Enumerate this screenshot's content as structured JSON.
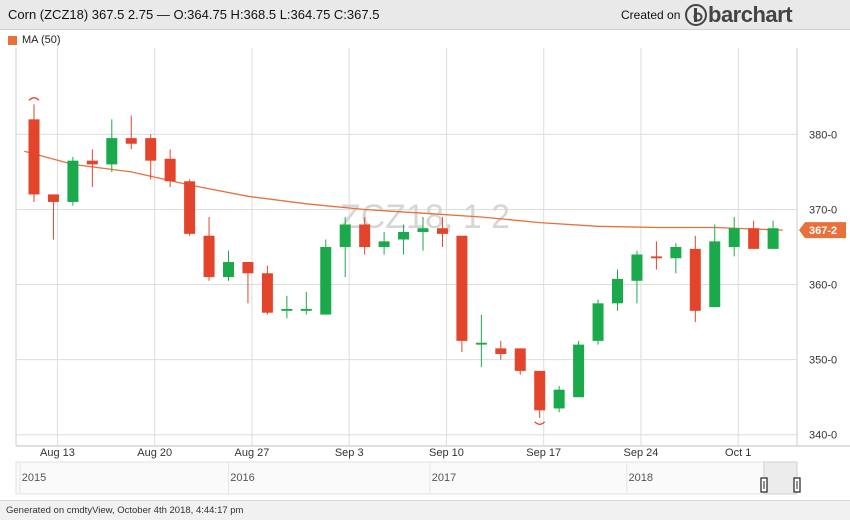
{
  "header": {
    "title": "Corn (ZCZ18) 367.5 2.75 — O:364.75 H:368.5 L:364.75 C:367.5",
    "created_on": "Created on",
    "brand": "barchart"
  },
  "footer": {
    "generated": "Generated on cmdtyView, October 4th 2018, 4:44:17 pm"
  },
  "watermark": "ZCZ18, 1 2",
  "colors": {
    "up": "#1aaa4b",
    "down": "#e2442c",
    "ma": "#e8703a",
    "grid": "#dddddd",
    "price_tag": "#e8703a"
  },
  "chart_data": {
    "type": "candlestick",
    "title": "Corn (ZCZ18)",
    "legend": [
      {
        "name": "MA (50)",
        "color": "#e8703a"
      }
    ],
    "y_axis": {
      "min": 338.5,
      "max": 391.5,
      "ticks": [
        340,
        350,
        360,
        370,
        380
      ],
      "tick_labels": [
        "340-0",
        "350-0",
        "360-0",
        "370-0",
        "380-0"
      ]
    },
    "x_axis": {
      "tick_labels": [
        {
          "label": "Aug 13",
          "index": 1
        },
        {
          "label": "Aug 20",
          "index": 6
        },
        {
          "label": "Aug 27",
          "index": 11
        },
        {
          "label": "Sep 3",
          "index": 16
        },
        {
          "label": "Sep 10",
          "index": 21
        },
        {
          "label": "Sep 17",
          "index": 26
        },
        {
          "label": "Sep 24",
          "index": 31
        },
        {
          "label": "Oct 1",
          "index": 36
        }
      ]
    },
    "navigator_years": [
      {
        "label": "2015",
        "frac": 0.023
      },
      {
        "label": "2016",
        "frac": 0.29
      },
      {
        "label": "2017",
        "frac": 0.548
      },
      {
        "label": "2018",
        "frac": 0.8
      }
    ],
    "last_price_label": "367-2",
    "last_price": 367.25,
    "grid": true,
    "candles": [
      {
        "o": 382,
        "h": 384,
        "l": 371,
        "c": 372
      },
      {
        "o": 372,
        "h": 372,
        "l": 366,
        "c": 371
      },
      {
        "o": 371,
        "h": 377,
        "l": 370.5,
        "c": 376.5
      },
      {
        "o": 376.5,
        "h": 378,
        "l": 373,
        "c": 376
      },
      {
        "o": 376,
        "h": 382,
        "l": 375,
        "c": 379.5
      },
      {
        "o": 379.5,
        "h": 382.5,
        "l": 378,
        "c": 378.75
      },
      {
        "o": 379.5,
        "h": 380,
        "l": 374,
        "c": 376.5
      },
      {
        "o": 376.75,
        "h": 378,
        "l": 373,
        "c": 373.75
      },
      {
        "o": 373.75,
        "h": 374,
        "l": 366.5,
        "c": 366.75
      },
      {
        "o": 366.5,
        "h": 369,
        "l": 360.5,
        "c": 361
      },
      {
        "o": 361,
        "h": 364.5,
        "l": 360.5,
        "c": 363
      },
      {
        "o": 363,
        "h": 363,
        "l": 357.5,
        "c": 361.5
      },
      {
        "o": 361.5,
        "h": 362.5,
        "l": 356,
        "c": 356.25
      },
      {
        "o": 356.5,
        "h": 358.5,
        "l": 355.5,
        "c": 356.75
      },
      {
        "o": 356.5,
        "h": 359,
        "l": 356,
        "c": 356.75
      },
      {
        "o": 356,
        "h": 366,
        "l": 356,
        "c": 365
      },
      {
        "o": 365,
        "h": 369,
        "l": 361,
        "c": 368
      },
      {
        "o": 368,
        "h": 369,
        "l": 364,
        "c": 365
      },
      {
        "o": 365,
        "h": 367,
        "l": 364,
        "c": 365.75
      },
      {
        "o": 366,
        "h": 368,
        "l": 364,
        "c": 367
      },
      {
        "o": 367,
        "h": 369,
        "l": 364.5,
        "c": 367.5
      },
      {
        "o": 367.5,
        "h": 369,
        "l": 365,
        "c": 366.75
      },
      {
        "o": 366.5,
        "h": 366.5,
        "l": 351,
        "c": 352.5
      },
      {
        "o": 352,
        "h": 356,
        "l": 349,
        "c": 352.25
      },
      {
        "o": 351.5,
        "h": 352.5,
        "l": 350,
        "c": 350.75
      },
      {
        "o": 351.5,
        "h": 351.5,
        "l": 348,
        "c": 348.5
      },
      {
        "o": 348.5,
        "h": 348.5,
        "l": 342.25,
        "c": 343.25
      },
      {
        "o": 343.5,
        "h": 346.5,
        "l": 343,
        "c": 346
      },
      {
        "o": 345,
        "h": 352.5,
        "l": 345,
        "c": 352
      },
      {
        "o": 352.5,
        "h": 358,
        "l": 352,
        "c": 357.5
      },
      {
        "o": 357.5,
        "h": 362,
        "l": 356.5,
        "c": 360.75
      },
      {
        "o": 360.5,
        "h": 364.5,
        "l": 357.5,
        "c": 364
      },
      {
        "o": 363.75,
        "h": 365.75,
        "l": 362,
        "c": 363.5
      },
      {
        "o": 363.5,
        "h": 365.5,
        "l": 361.5,
        "c": 365
      },
      {
        "o": 364.75,
        "h": 366.5,
        "l": 355,
        "c": 356.5
      },
      {
        "o": 357,
        "h": 368,
        "l": 357,
        "c": 365.75
      },
      {
        "o": 365,
        "h": 369,
        "l": 363.75,
        "c": 367.5
      },
      {
        "o": 367.5,
        "h": 368.5,
        "l": 364.75,
        "c": 364.75
      },
      {
        "o": 364.75,
        "h": 368.5,
        "l": 364.75,
        "c": 367.5
      }
    ],
    "ma_50": [
      {
        "index": -0.5,
        "v": 377.75
      },
      {
        "index": 2,
        "v": 376
      },
      {
        "index": 5,
        "v": 375
      },
      {
        "index": 8,
        "v": 373.25
      },
      {
        "index": 11,
        "v": 371.75
      },
      {
        "index": 14,
        "v": 370.75
      },
      {
        "index": 17,
        "v": 370
      },
      {
        "index": 20,
        "v": 369.5
      },
      {
        "index": 23,
        "v": 369
      },
      {
        "index": 26,
        "v": 368.25
      },
      {
        "index": 29,
        "v": 367.75
      },
      {
        "index": 32,
        "v": 367.6
      },
      {
        "index": 35,
        "v": 367.6
      },
      {
        "index": 38.5,
        "v": 367.25
      }
    ]
  }
}
